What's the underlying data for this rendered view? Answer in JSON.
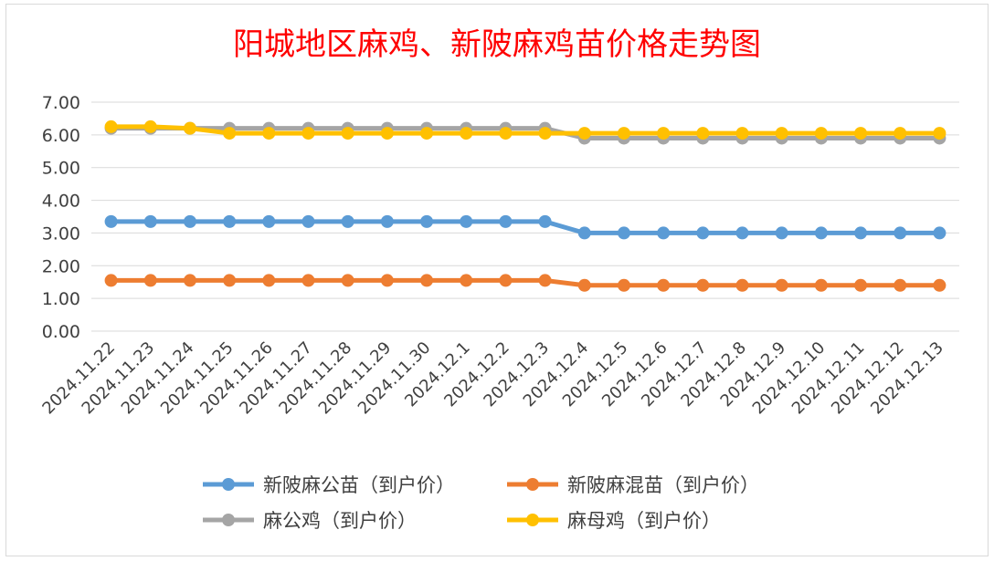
{
  "chart_data": {
    "type": "line",
    "title": "阳城地区麻鸡、新陂麻鸡苗价格走势图",
    "xlabel": "",
    "ylabel": "",
    "ylim": [
      0,
      7
    ],
    "ytick_step": 1,
    "ytick_labels": [
      "0.00",
      "1.00",
      "2.00",
      "3.00",
      "4.00",
      "5.00",
      "6.00",
      "7.00"
    ],
    "grid": true,
    "legend_position": "bottom",
    "categories": [
      "2024.11.22",
      "2024.11.23",
      "2024.11.24",
      "2024.11.25",
      "2024.11.26",
      "2024.11.27",
      "2024.11.28",
      "2024.11.29",
      "2024.11.30",
      "2024.12.1",
      "2024.12.2",
      "2024.12.3",
      "2024.12.4",
      "2024.12.5",
      "2024.12.6",
      "2024.12.7",
      "2024.12.8",
      "2024.12.9",
      "2024.12.10",
      "2024.12.11",
      "2024.12.12",
      "2024.12.13"
    ],
    "series": [
      {
        "name": "新陂麻公苗（到户价）",
        "color": "#5b9bd5",
        "values": [
          3.35,
          3.35,
          3.35,
          3.35,
          3.35,
          3.35,
          3.35,
          3.35,
          3.35,
          3.35,
          3.35,
          3.35,
          3.0,
          3.0,
          3.0,
          3.0,
          3.0,
          3.0,
          3.0,
          3.0,
          3.0,
          3.0
        ]
      },
      {
        "name": "新陂麻混苗（到户价）",
        "color": "#ed7d31",
        "values": [
          1.55,
          1.55,
          1.55,
          1.55,
          1.55,
          1.55,
          1.55,
          1.55,
          1.55,
          1.55,
          1.55,
          1.55,
          1.4,
          1.4,
          1.4,
          1.4,
          1.4,
          1.4,
          1.4,
          1.4,
          1.4,
          1.4
        ]
      },
      {
        "name": "麻公鸡（到户价）",
        "color": "#a5a5a5",
        "values": [
          6.2,
          6.2,
          6.2,
          6.2,
          6.2,
          6.2,
          6.2,
          6.2,
          6.2,
          6.2,
          6.2,
          6.2,
          5.9,
          5.9,
          5.9,
          5.9,
          5.9,
          5.9,
          5.9,
          5.9,
          5.9,
          5.9
        ]
      },
      {
        "name": "麻母鸡（到户价）",
        "color": "#ffc000",
        "values": [
          6.25,
          6.25,
          6.2,
          6.05,
          6.05,
          6.05,
          6.05,
          6.05,
          6.05,
          6.05,
          6.05,
          6.05,
          6.05,
          6.05,
          6.05,
          6.05,
          6.05,
          6.05,
          6.05,
          6.05,
          6.05,
          6.05
        ]
      }
    ]
  }
}
